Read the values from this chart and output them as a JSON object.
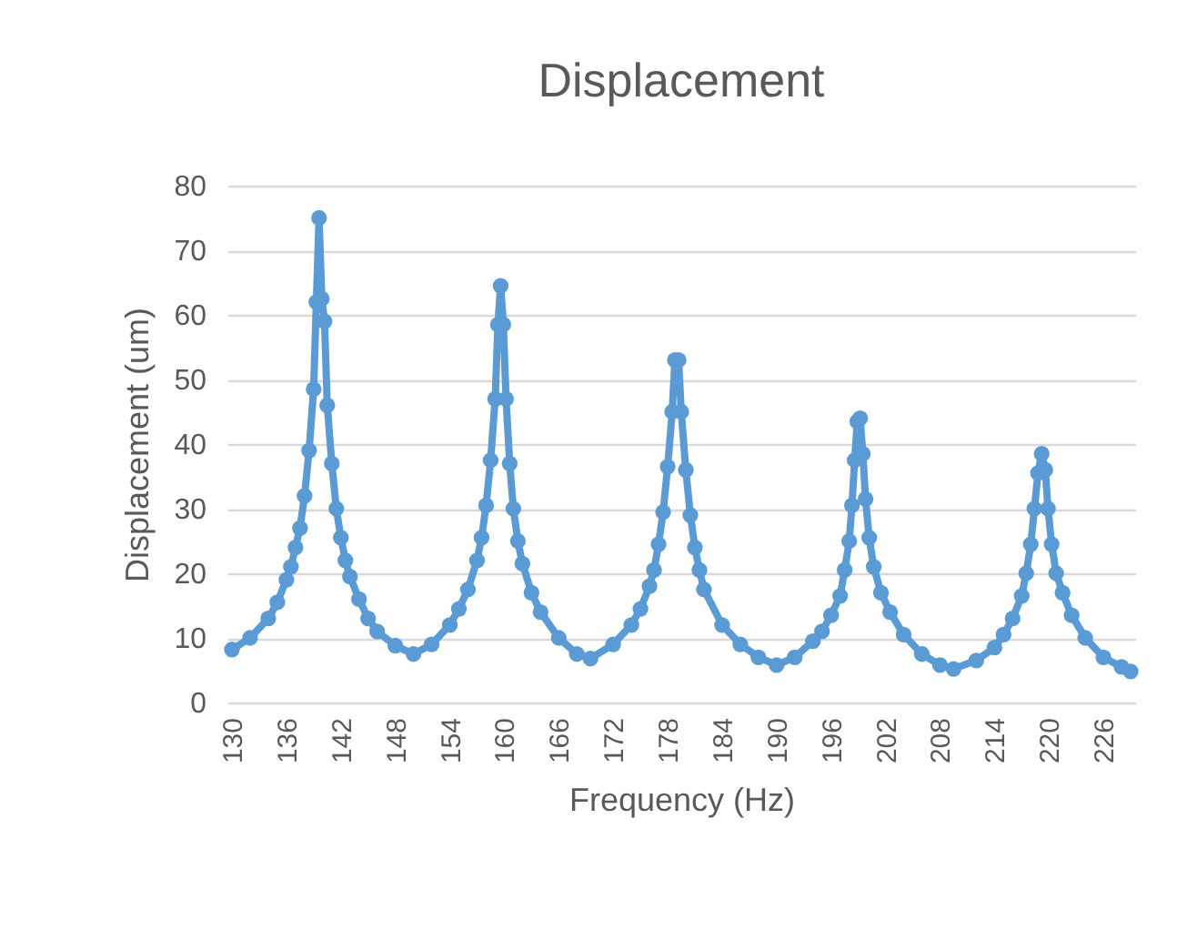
{
  "chart_data": {
    "type": "line",
    "title": "Displacement",
    "xlabel": "Frequency (Hz)",
    "ylabel": "Displacement (um)",
    "x": [
      130,
      132,
      134,
      135,
      136,
      136.5,
      137,
      137.5,
      138,
      138.5,
      139,
      139.3,
      139.6,
      139.9,
      140.2,
      140.5,
      141,
      141.5,
      142,
      142.5,
      143,
      144,
      145,
      146,
      148,
      150,
      152,
      154,
      155,
      156,
      157,
      157.5,
      158,
      158.5,
      159,
      159.3,
      159.6,
      159.9,
      160.2,
      160.6,
      161,
      161.5,
      162,
      163,
      164,
      166,
      168,
      169.5,
      172,
      174,
      175,
      176,
      176.5,
      177,
      177.5,
      178,
      178.5,
      178.8,
      179.2,
      179.5,
      180,
      180.5,
      181,
      181.5,
      182,
      184,
      186,
      188,
      190,
      192,
      194,
      195,
      196,
      197,
      197.5,
      198,
      198.3,
      198.6,
      198.9,
      199.2,
      199.5,
      199.8,
      200.2,
      200.7,
      201.5,
      202.5,
      204,
      206,
      208,
      209.5,
      212,
      214,
      215,
      216,
      217,
      217.5,
      218,
      218.4,
      218.8,
      219.2,
      219.6,
      219.9,
      220.3,
      220.8,
      221.5,
      222.5,
      224,
      226,
      228,
      229
    ],
    "series": [
      {
        "color": "#5b9bd5",
        "values": [
          8.2,
          10,
          13,
          15.5,
          19,
          21,
          24,
          27,
          32,
          39,
          48.5,
          62,
          75,
          62.5,
          59,
          46,
          37,
          30,
          25.5,
          22,
          19.5,
          16,
          13,
          11,
          8.8,
          7.5,
          9,
          12,
          14.5,
          17.5,
          22,
          25.5,
          30.5,
          37.5,
          47,
          58.5,
          64.5,
          58.5,
          47,
          37,
          30,
          25,
          21.5,
          17,
          14,
          10,
          7.5,
          6.8,
          9,
          12,
          14.5,
          18,
          20.5,
          24.5,
          29.5,
          36.5,
          45,
          53,
          53,
          45,
          36,
          29,
          24,
          20.5,
          17.5,
          12,
          9,
          7,
          5.8,
          7,
          9.5,
          11,
          13.5,
          16.5,
          20.5,
          25,
          30.5,
          37.5,
          43.5,
          44,
          38.5,
          31.5,
          25.5,
          21,
          17,
          14,
          10.5,
          7.5,
          5.8,
          5.2,
          6.5,
          8.5,
          10.5,
          13,
          16.5,
          20,
          24.5,
          30,
          35.5,
          38.5,
          36,
          30,
          24.5,
          20,
          17,
          13.5,
          10,
          7,
          5.5,
          4.8
        ]
      }
    ],
    "xlim": [
      129.5,
      229.5
    ],
    "xticks": [
      130,
      136,
      142,
      148,
      154,
      160,
      166,
      172,
      178,
      184,
      190,
      196,
      202,
      208,
      214,
      220,
      226
    ],
    "ylim": [
      0,
      80
    ],
    "yticks": [
      0,
      10,
      20,
      30,
      40,
      50,
      60,
      70,
      80
    ],
    "grid": "y",
    "marker": "circle",
    "line_style": "solid"
  }
}
